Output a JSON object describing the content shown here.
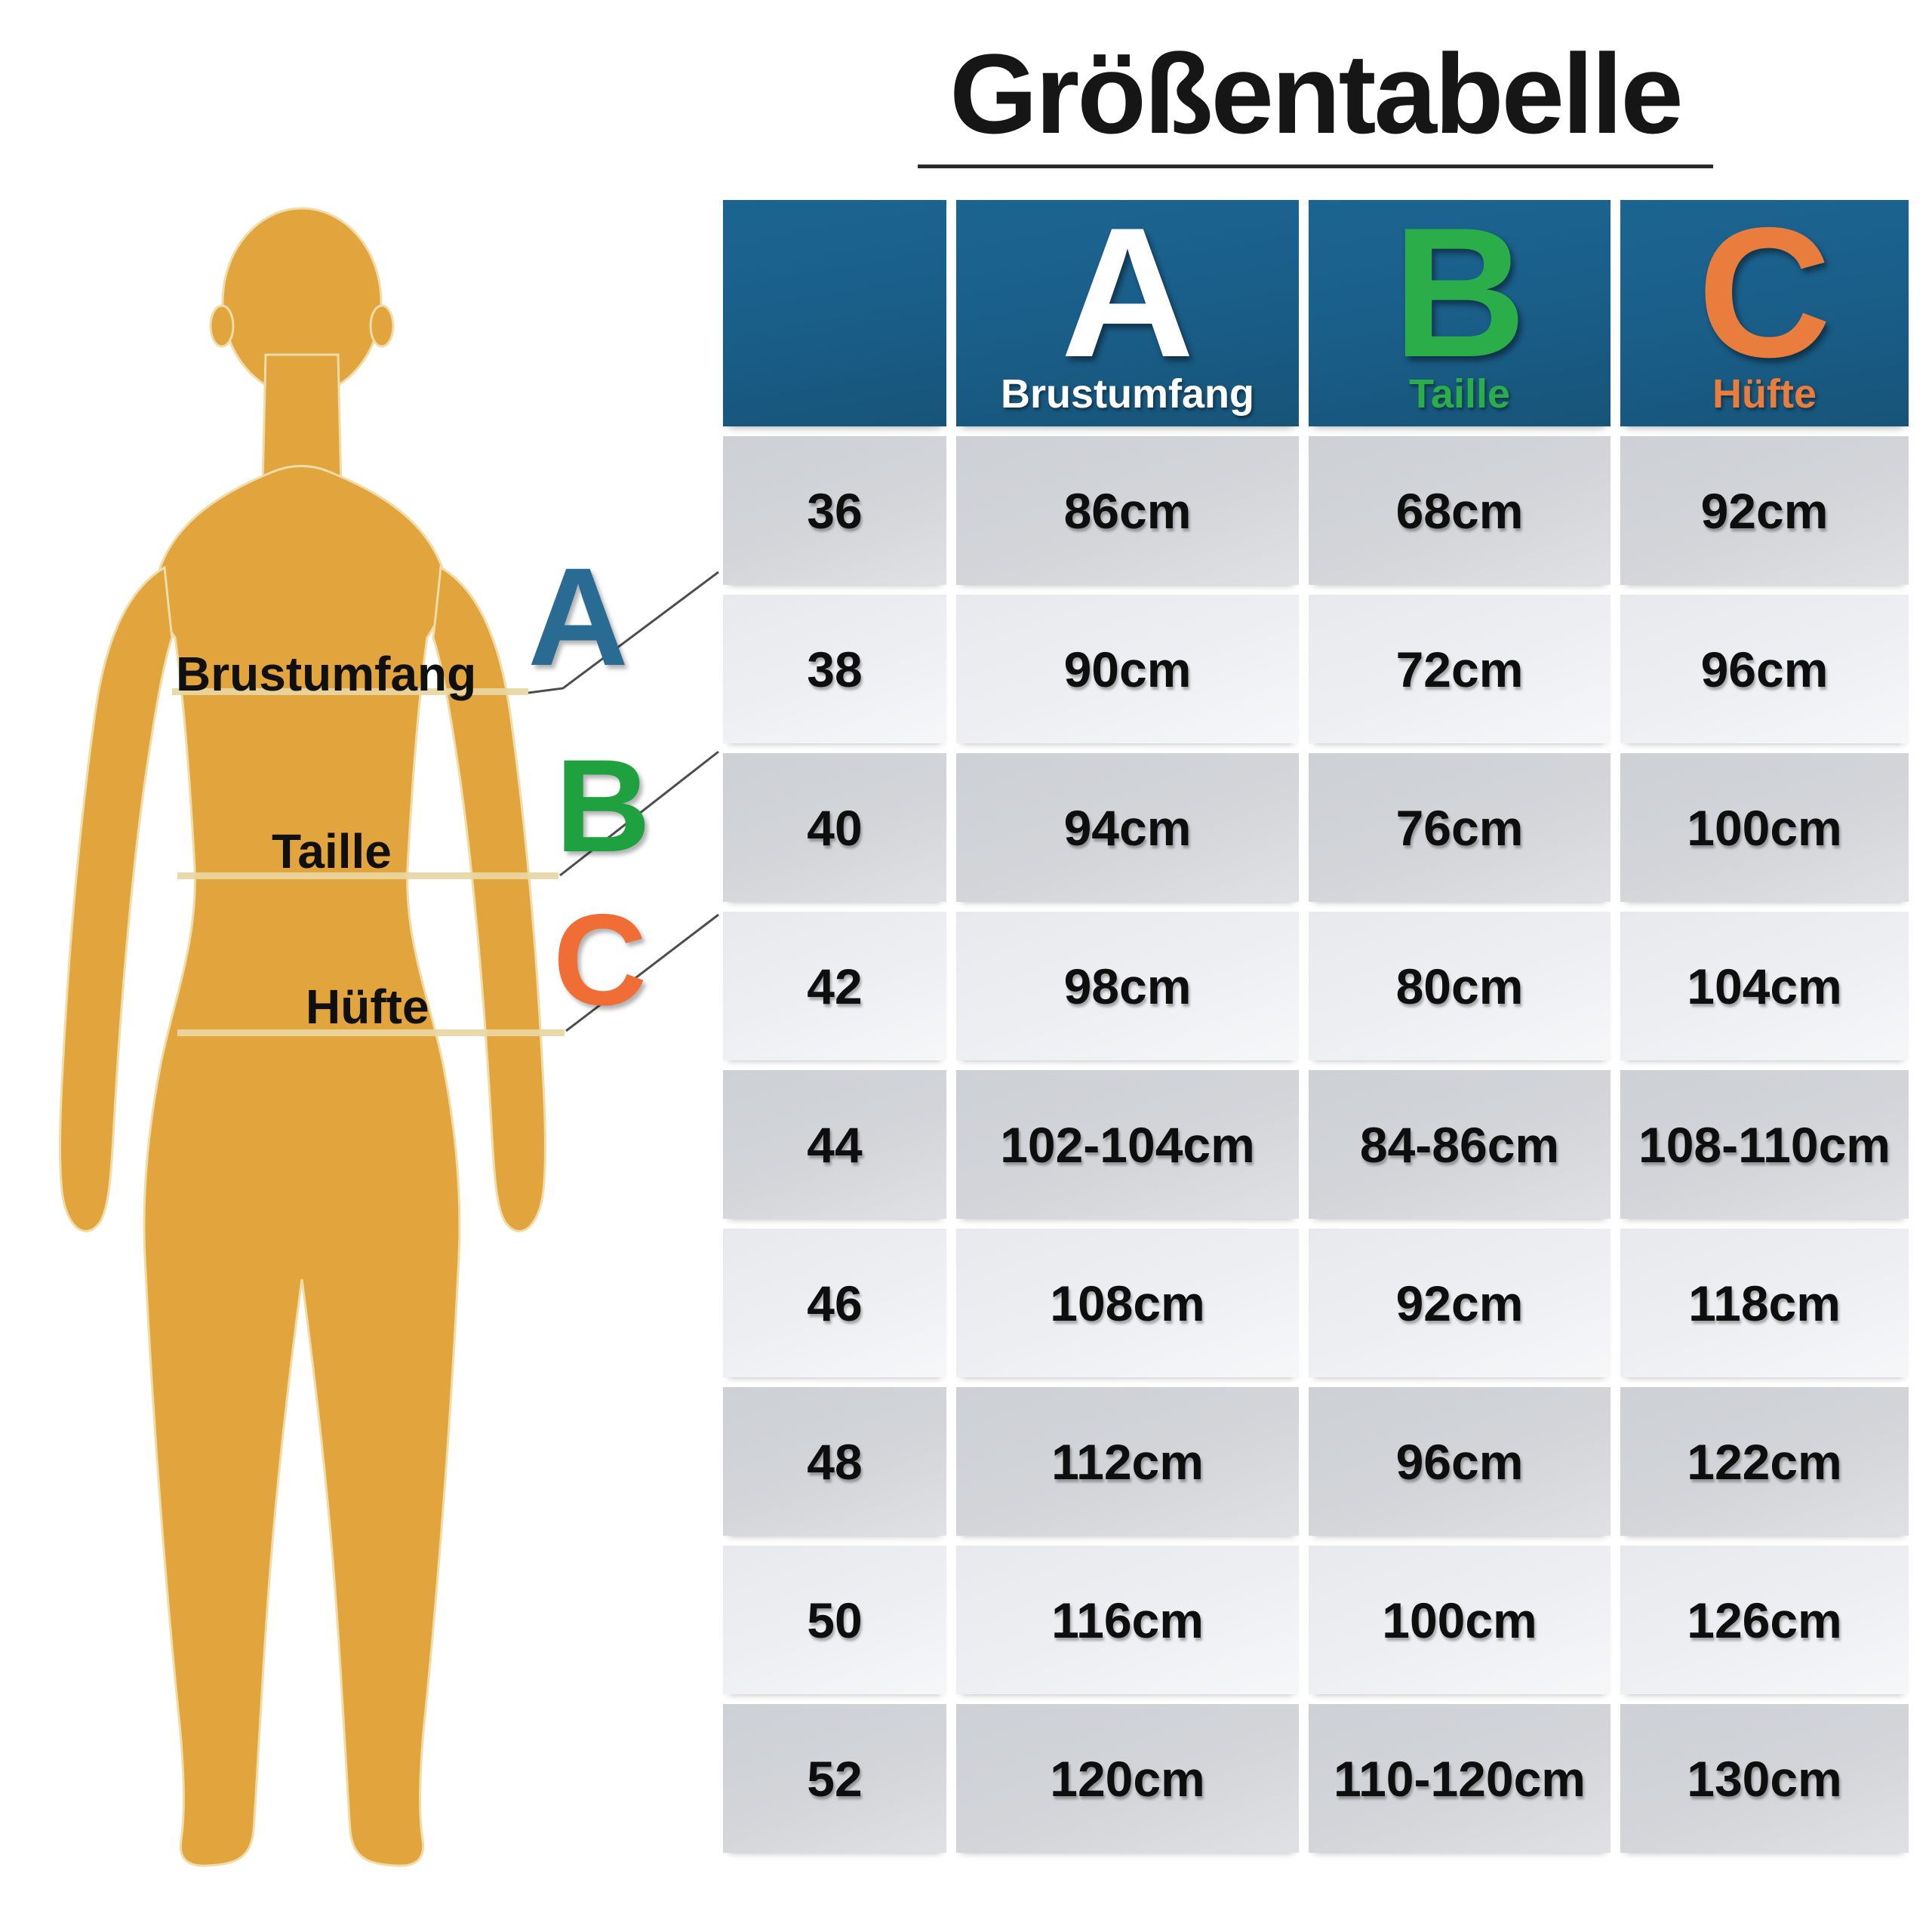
{
  "title": "Größentabelle",
  "colors": {
    "header_bg": "#1a5f8b",
    "row_dark": "#d3d5d9",
    "row_light": "#edeff2",
    "col_a": "#ffffff",
    "col_b": "#2bae4a",
    "col_c": "#e97d3e",
    "letter_a": "#2a6b94",
    "letter_b": "#1ea13e",
    "letter_c": "#f06e35",
    "body": "#e2a43d",
    "title": "#161616"
  },
  "diagram": {
    "figure": "female-body-silhouette",
    "measurements": [
      {
        "letter": "A",
        "label": "Brustumfang"
      },
      {
        "letter": "B",
        "label": "Taille"
      },
      {
        "letter": "C",
        "label": "Hüfte"
      }
    ]
  },
  "table": {
    "header": {
      "columns": [
        {
          "letter": "",
          "label": ""
        },
        {
          "letter": "A",
          "label": "Brustumfang"
        },
        {
          "letter": "B",
          "label": "Taille"
        },
        {
          "letter": "C",
          "label": "Hüfte"
        }
      ]
    },
    "rows": [
      {
        "size": "36",
        "chest": "86cm",
        "waist": "68cm",
        "hip": "92cm"
      },
      {
        "size": "38",
        "chest": "90cm",
        "waist": "72cm",
        "hip": "96cm"
      },
      {
        "size": "40",
        "chest": "94cm",
        "waist": "76cm",
        "hip": "100cm"
      },
      {
        "size": "42",
        "chest": "98cm",
        "waist": "80cm",
        "hip": "104cm"
      },
      {
        "size": "44",
        "chest": "102-104cm",
        "waist": "84-86cm",
        "hip": "108-110cm"
      },
      {
        "size": "46",
        "chest": "108cm",
        "waist": "92cm",
        "hip": "118cm"
      },
      {
        "size": "48",
        "chest": "112cm",
        "waist": "96cm",
        "hip": "122cm"
      },
      {
        "size": "50",
        "chest": "116cm",
        "waist": "100cm",
        "hip": "126cm"
      },
      {
        "size": "52",
        "chest": "120cm",
        "waist": "110-120cm",
        "hip": "130cm"
      }
    ]
  },
  "chart_data": {
    "type": "table",
    "title": "Größentabelle",
    "columns": [
      "",
      "A Brustumfang",
      "B Taille",
      "C Hüfte"
    ],
    "rows": [
      [
        "36",
        "86cm",
        "68cm",
        "92cm"
      ],
      [
        "38",
        "90cm",
        "72cm",
        "96cm"
      ],
      [
        "40",
        "94cm",
        "76cm",
        "100cm"
      ],
      [
        "42",
        "98cm",
        "80cm",
        "104cm"
      ],
      [
        "44",
        "102-104cm",
        "84-86cm",
        "108-110cm"
      ],
      [
        "46",
        "108cm",
        "92cm",
        "118cm"
      ],
      [
        "48",
        "112cm",
        "96cm",
        "122cm"
      ],
      [
        "50",
        "116cm",
        "100cm",
        "126cm"
      ],
      [
        "52",
        "120cm",
        "110-120cm",
        "130cm"
      ]
    ]
  }
}
